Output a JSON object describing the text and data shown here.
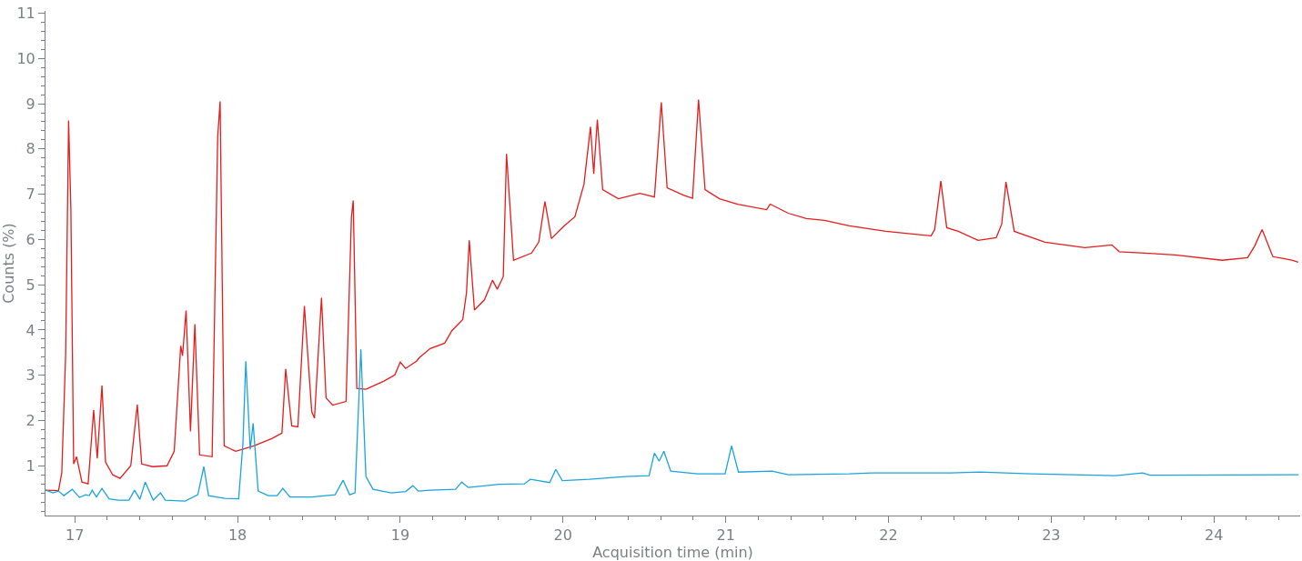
{
  "chart_data": {
    "type": "line",
    "xlabel": "Acquisition time (min)",
    "ylabel": "Counts (%)",
    "xlim": [
      16.82,
      24.53
    ],
    "ylim": [
      -0.1,
      11.05
    ],
    "marker": "none",
    "line_style": "solid",
    "xticks": [
      17,
      {
        "value": 17.2,
        "label": null
      },
      {
        "value": 17.4,
        "label": null
      },
      {
        "value": 17.6,
        "label": null
      },
      {
        "value": 17.8,
        "label": null
      },
      18,
      {
        "value": 18.2,
        "label": null
      },
      {
        "value": 18.4,
        "label": null
      },
      {
        "value": 18.6,
        "label": null
      },
      {
        "value": 18.8,
        "label": null
      },
      19,
      {
        "value": 19.2,
        "label": null
      },
      {
        "value": 19.4,
        "label": null
      },
      {
        "value": 19.6,
        "label": null
      },
      {
        "value": 19.8,
        "label": null
      },
      20,
      {
        "value": 20.2,
        "label": null
      },
      {
        "value": 20.4,
        "label": null
      },
      {
        "value": 20.6,
        "label": null
      },
      {
        "value": 20.8,
        "label": null
      },
      21,
      {
        "value": 21.2,
        "label": null
      },
      {
        "value": 21.4,
        "label": null
      },
      {
        "value": 21.6,
        "label": null
      },
      {
        "value": 21.8,
        "label": null
      },
      22,
      {
        "value": 22.2,
        "label": null
      },
      {
        "value": 22.4,
        "label": null
      },
      {
        "value": 22.6,
        "label": null
      },
      {
        "value": 22.8,
        "label": null
      },
      23,
      {
        "value": 23.2,
        "label": null
      },
      {
        "value": 23.4,
        "label": null
      },
      {
        "value": 23.6,
        "label": null
      },
      {
        "value": 23.8,
        "label": null
      },
      24,
      {
        "value": 24.2,
        "label": null
      },
      {
        "value": 24.4,
        "label": null
      }
    ],
    "yticks": [
      {
        "value": 0,
        "label": null
      },
      {
        "value": 0.2,
        "label": null
      },
      {
        "value": 0.4,
        "label": null
      },
      {
        "value": 0.6,
        "label": null
      },
      {
        "value": 0.8,
        "label": null
      },
      1,
      {
        "value": 1.2,
        "label": null
      },
      {
        "value": 1.4,
        "label": null
      },
      {
        "value": 1.6,
        "label": null
      },
      {
        "value": 1.8,
        "label": null
      },
      2,
      {
        "value": 2.2,
        "label": null
      },
      {
        "value": 2.4,
        "label": null
      },
      {
        "value": 2.6,
        "label": null
      },
      {
        "value": 2.8,
        "label": null
      },
      3,
      {
        "value": 3.2,
        "label": null
      },
      {
        "value": 3.4,
        "label": null
      },
      {
        "value": 3.6,
        "label": null
      },
      {
        "value": 3.8,
        "label": null
      },
      4,
      {
        "value": 4.2,
        "label": null
      },
      {
        "value": 4.4,
        "label": null
      },
      {
        "value": 4.6,
        "label": null
      },
      {
        "value": 4.8,
        "label": null
      },
      5,
      {
        "value": 5.2,
        "label": null
      },
      {
        "value": 5.4,
        "label": null
      },
      {
        "value": 5.6,
        "label": null
      },
      {
        "value": 5.8,
        "label": null
      },
      6,
      {
        "value": 6.2,
        "label": null
      },
      {
        "value": 6.4,
        "label": null
      },
      {
        "value": 6.6,
        "label": null
      },
      {
        "value": 6.8,
        "label": null
      },
      7,
      {
        "value": 7.2,
        "label": null
      },
      {
        "value": 7.4,
        "label": null
      },
      {
        "value": 7.6,
        "label": null
      },
      {
        "value": 7.8,
        "label": null
      },
      8,
      {
        "value": 8.2,
        "label": null
      },
      {
        "value": 8.4,
        "label": null
      },
      {
        "value": 8.6,
        "label": null
      },
      {
        "value": 8.8,
        "label": null
      },
      9,
      {
        "value": 9.2,
        "label": null
      },
      {
        "value": 9.4,
        "label": null
      },
      {
        "value": 9.6,
        "label": null
      },
      {
        "value": 9.8,
        "label": null
      },
      10,
      {
        "value": 10.2,
        "label": null
      },
      {
        "value": 10.4,
        "label": null
      },
      {
        "value": 10.6,
        "label": null
      },
      {
        "value": 10.8,
        "label": null
      },
      11
    ],
    "series": [
      {
        "color": "#e41c1c",
        "x": [
          16.82,
          16.9,
          16.92,
          16.944,
          16.962,
          16.976,
          16.993,
          17.011,
          17.044,
          17.082,
          17.116,
          17.138,
          17.167,
          17.189,
          17.233,
          17.278,
          17.344,
          17.384,
          17.411,
          17.478,
          17.567,
          17.611,
          17.651,
          17.662,
          17.684,
          17.711,
          17.738,
          17.767,
          17.844,
          17.878,
          17.893,
          17.918,
          17.989,
          18.1,
          18.211,
          18.273,
          18.296,
          18.333,
          18.371,
          18.411,
          18.456,
          18.473,
          18.516,
          18.544,
          18.584,
          18.667,
          18.7,
          18.711,
          18.733,
          18.789,
          18.9,
          18.967,
          19.0,
          19.033,
          19.1,
          19.118,
          19.184,
          19.273,
          19.318,
          19.384,
          19.407,
          19.424,
          19.456,
          19.518,
          19.567,
          19.596,
          19.633,
          19.653,
          19.696,
          19.807,
          19.851,
          19.889,
          19.929,
          20.007,
          20.073,
          20.129,
          20.169,
          20.189,
          20.211,
          20.244,
          20.34,
          20.473,
          20.562,
          20.604,
          20.64,
          20.74,
          20.796,
          20.833,
          20.873,
          20.962,
          21.073,
          21.251,
          21.273,
          21.384,
          21.496,
          21.607,
          21.76,
          21.984,
          22.262,
          22.284,
          22.322,
          22.358,
          22.429,
          22.551,
          22.662,
          22.696,
          22.722,
          22.773,
          22.962,
          23.207,
          23.373,
          23.418,
          23.762,
          24.051,
          24.207,
          24.251,
          24.296,
          24.362,
          24.429,
          24.484,
          24.518
        ],
        "values": [
          0.46,
          0.45,
          0.84,
          3.47,
          8.63,
          6.66,
          1.04,
          1.2,
          0.64,
          0.6,
          2.23,
          1.16,
          2.77,
          1.08,
          0.8,
          0.72,
          1.0,
          2.35,
          1.04,
          0.98,
          1.0,
          1.32,
          3.65,
          3.43,
          4.43,
          1.76,
          4.13,
          1.24,
          1.2,
          8.25,
          9.05,
          1.44,
          1.32,
          1.44,
          1.6,
          1.72,
          3.14,
          1.88,
          1.86,
          4.53,
          2.2,
          2.05,
          4.71,
          2.5,
          2.34,
          2.42,
          6.5,
          6.86,
          2.71,
          2.69,
          2.87,
          3.01,
          3.29,
          3.15,
          3.31,
          3.39,
          3.59,
          3.71,
          3.99,
          4.23,
          4.82,
          5.98,
          4.44,
          4.67,
          5.1,
          4.9,
          5.18,
          7.89,
          5.54,
          5.7,
          5.94,
          6.84,
          6.02,
          6.3,
          6.5,
          7.22,
          8.49,
          7.45,
          8.65,
          7.1,
          6.9,
          7.02,
          6.94,
          9.03,
          7.14,
          6.98,
          6.91,
          9.09,
          7.1,
          6.9,
          6.78,
          6.66,
          6.78,
          6.58,
          6.46,
          6.42,
          6.3,
          6.18,
          6.08,
          6.22,
          7.29,
          6.26,
          6.18,
          5.98,
          6.04,
          6.34,
          7.27,
          6.18,
          5.94,
          5.82,
          5.88,
          5.73,
          5.66,
          5.54,
          5.6,
          5.86,
          6.22,
          5.62,
          5.58,
          5.54,
          5.5
        ]
      },
      {
        "color": "#1aa3e0",
        "x": [
          16.822,
          16.867,
          16.9,
          16.933,
          16.984,
          17.029,
          17.067,
          17.089,
          17.107,
          17.133,
          17.167,
          17.211,
          17.267,
          17.333,
          17.367,
          17.4,
          17.433,
          17.482,
          17.527,
          17.556,
          17.678,
          17.756,
          17.793,
          17.822,
          17.922,
          18.007,
          18.033,
          18.051,
          18.078,
          18.096,
          18.127,
          18.189,
          18.244,
          18.278,
          18.322,
          18.456,
          18.6,
          18.649,
          18.689,
          18.722,
          18.758,
          18.789,
          18.833,
          18.944,
          19.033,
          19.078,
          19.111,
          19.184,
          19.34,
          19.378,
          19.418,
          19.607,
          19.762,
          19.8,
          19.918,
          19.956,
          19.996,
          20.162,
          20.384,
          20.529,
          20.562,
          20.591,
          20.62,
          20.662,
          20.829,
          20.996,
          21.036,
          21.078,
          21.284,
          21.384,
          21.76,
          21.896,
          22.384,
          22.562,
          22.873,
          23.396,
          23.562,
          23.607,
          24.52
        ],
        "values": [
          0.46,
          0.4,
          0.44,
          0.34,
          0.48,
          0.3,
          0.36,
          0.34,
          0.46,
          0.31,
          0.5,
          0.27,
          0.24,
          0.24,
          0.46,
          0.26,
          0.64,
          0.24,
          0.4,
          0.24,
          0.22,
          0.36,
          0.98,
          0.34,
          0.28,
          0.27,
          1.48,
          3.31,
          1.36,
          1.94,
          0.44,
          0.34,
          0.34,
          0.5,
          0.31,
          0.31,
          0.36,
          0.68,
          0.36,
          0.4,
          3.57,
          0.76,
          0.48,
          0.4,
          0.43,
          0.56,
          0.44,
          0.46,
          0.48,
          0.64,
          0.52,
          0.59,
          0.6,
          0.7,
          0.63,
          0.92,
          0.67,
          0.7,
          0.76,
          0.78,
          1.28,
          1.1,
          1.32,
          0.88,
          0.82,
          0.82,
          1.44,
          0.86,
          0.88,
          0.8,
          0.82,
          0.84,
          0.84,
          0.86,
          0.82,
          0.78,
          0.84,
          0.79,
          0.8
        ]
      }
    ]
  }
}
